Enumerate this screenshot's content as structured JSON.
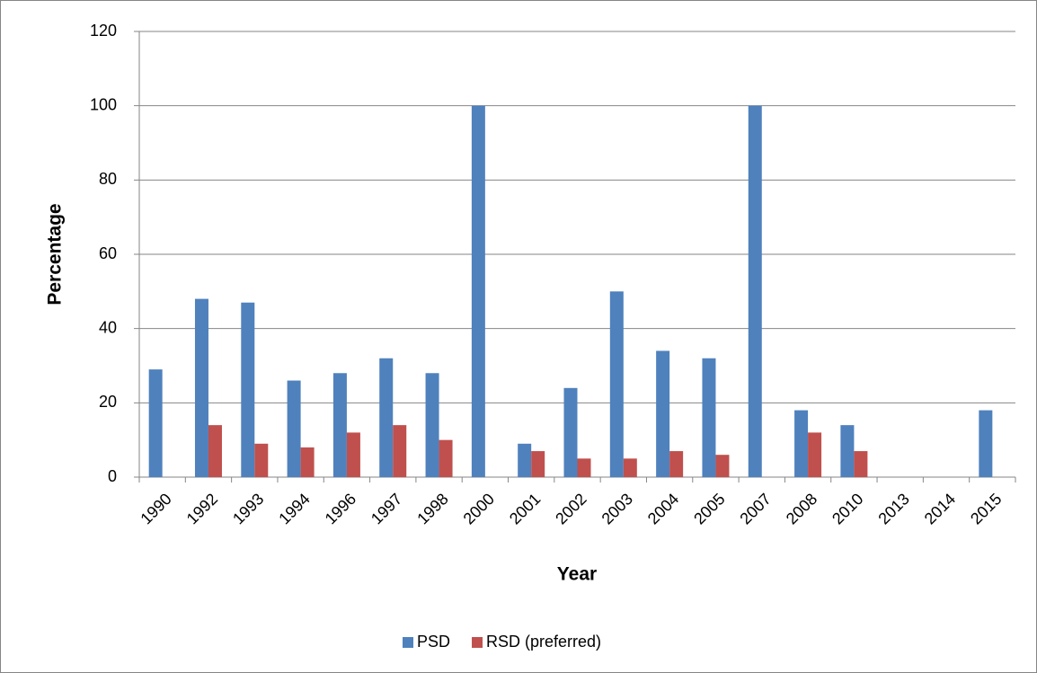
{
  "chart_data": {
    "type": "bar",
    "x_label": "Year",
    "y_label": "Percentage",
    "categories": [
      "1990",
      "1992",
      "1993",
      "1994",
      "1996",
      "1997",
      "1998",
      "2000",
      "2001",
      "2002",
      "2003",
      "2004",
      "2005",
      "2007",
      "2008",
      "2010",
      "2013",
      "2014",
      "2015"
    ],
    "series": [
      {
        "name": "PSD",
        "color": "#4f81bd",
        "values": [
          29,
          48,
          47,
          26,
          28,
          32,
          28,
          100,
          9,
          24,
          50,
          34,
          32,
          100,
          18,
          14,
          null,
          null,
          18
        ]
      },
      {
        "name": "RSD (preferred)",
        "color": "#c0504d",
        "values": [
          null,
          14,
          9,
          8,
          12,
          14,
          10,
          null,
          7,
          5,
          5,
          7,
          6,
          null,
          12,
          7,
          null,
          null,
          null
        ]
      }
    ],
    "ylim": [
      0,
      120
    ],
    "yticks": [
      0,
      20,
      40,
      60,
      80,
      100,
      120
    ],
    "grid": true,
    "legend": "bottom"
  }
}
